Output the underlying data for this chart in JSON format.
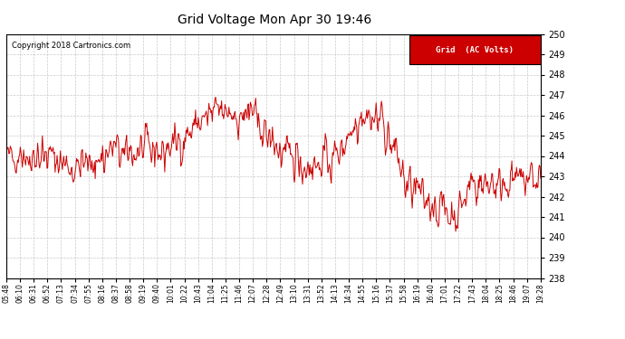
{
  "title": "Grid Voltage Mon Apr 30 19:46",
  "copyright": "Copyright 2018 Cartronics.com",
  "legend_label": "Grid  (AC Volts)",
  "line_color": "#cc0000",
  "legend_bg": "#cc0000",
  "legend_fg": "#ffffff",
  "background_color": "#ffffff",
  "grid_color": "#bbbbbb",
  "ylim": [
    238.0,
    250.0
  ],
  "ytick_interval": 1.0,
  "xtick_labels": [
    "05:48",
    "06:10",
    "06:31",
    "06:52",
    "07:13",
    "07:34",
    "07:55",
    "08:16",
    "08:37",
    "08:58",
    "09:19",
    "09:40",
    "10:01",
    "10:22",
    "10:43",
    "11:04",
    "11:25",
    "11:46",
    "12:07",
    "12:28",
    "12:49",
    "13:10",
    "13:31",
    "13:52",
    "14:13",
    "14:34",
    "14:55",
    "15:16",
    "15:37",
    "15:58",
    "16:19",
    "16:40",
    "17:01",
    "17:22",
    "17:43",
    "18:04",
    "18:25",
    "18:46",
    "19:07",
    "19:28"
  ],
  "seed": 42,
  "n_points": 800,
  "title_fontsize": 10,
  "tick_fontsize": 7,
  "xtick_fontsize": 5.5
}
